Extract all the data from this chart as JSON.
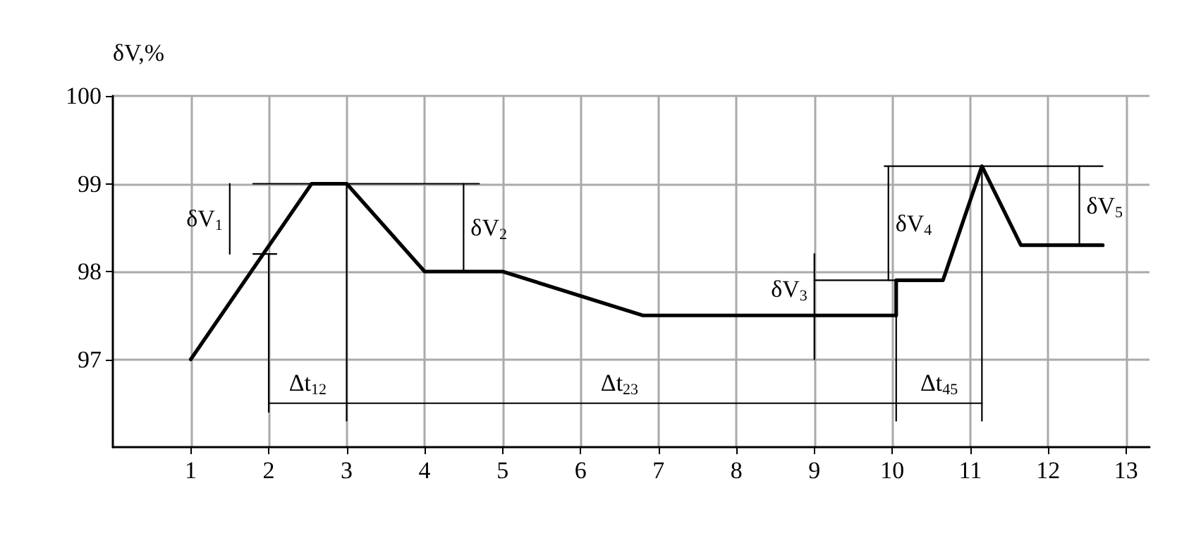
{
  "chart_data": {
    "type": "line",
    "ylabel": "δV,%",
    "xlim": [
      0,
      13.3
    ],
    "ylim": [
      96,
      100
    ],
    "xticks": [
      1,
      2,
      3,
      4,
      5,
      6,
      7,
      8,
      9,
      10,
      11,
      12,
      13
    ],
    "yticks": [
      97,
      98,
      99,
      100
    ],
    "grid": true,
    "marker": "none",
    "line_style": "solid",
    "series": [
      {
        "color": "#000000",
        "x": [
          1,
          2.55,
          3,
          4,
          5,
          6.8,
          10.05,
          10.05,
          10.65,
          11.15,
          11.65,
          12.7
        ],
        "values": [
          97,
          99,
          99,
          98,
          98,
          97.5,
          97.5,
          97.9,
          97.9,
          99.2,
          98.3,
          98.3
        ]
      },
      {
        "color": "#000000",
        "x": [
          1.8,
          4.7
        ],
        "values": [
          99,
          99
        ]
      },
      {
        "color": "#000000",
        "x": [
          1.8,
          2.1
        ],
        "values": [
          98.2,
          98.2
        ]
      },
      {
        "color": "#000000",
        "x": [
          1.5,
          1.5
        ],
        "values": [
          99,
          98.2
        ]
      },
      {
        "color": "#000000",
        "x": [
          4.5,
          4.5
        ],
        "values": [
          99,
          98
        ]
      },
      {
        "color": "#000000",
        "x": [
          2,
          2
        ],
        "values": [
          98.2,
          96.4
        ]
      },
      {
        "color": "#000000",
        "x": [
          3,
          3
        ],
        "values": [
          99,
          96.3
        ]
      },
      {
        "color": "#000000",
        "x": [
          2,
          11.15
        ],
        "values": [
          96.5,
          96.5
        ]
      },
      {
        "color": "#000000",
        "x": [
          10.05,
          10.05
        ],
        "values": [
          97.5,
          96.3
        ]
      },
      {
        "color": "#000000",
        "x": [
          11.15,
          11.15
        ],
        "values": [
          99.2,
          96.3
        ]
      },
      {
        "color": "#000000",
        "x": [
          9.9,
          12.7
        ],
        "values": [
          99.2,
          99.2
        ]
      },
      {
        "color": "#000000",
        "x": [
          9,
          10.05
        ],
        "values": [
          97.9,
          97.9
        ]
      },
      {
        "color": "#000000",
        "x": [
          9,
          9
        ],
        "values": [
          98.2,
          97
        ]
      },
      {
        "color": "#000000",
        "x": [
          9.95,
          9.95
        ],
        "values": [
          99.2,
          97.9
        ]
      },
      {
        "color": "#000000",
        "x": [
          12.4,
          12.4
        ],
        "values": [
          99.2,
          98.3
        ]
      }
    ],
    "annotations": [
      {
        "text": "δV$_{1}$",
        "x": 1.5,
        "y": 98.6
      },
      {
        "text": "δV$_{2}$",
        "x": 4.5,
        "y": 98.5
      },
      {
        "text": "δV$_{3}$",
        "x": 9,
        "y": 97.8
      },
      {
        "text": "δV$_{4}$",
        "x": 9.95,
        "y": 98.55
      },
      {
        "text": "δV$_{5}$",
        "x": 12.4,
        "y": 98.75
      },
      {
        "text": "Δt$_{12}$",
        "x": 2.5,
        "y": 96.5
      },
      {
        "text": "Δt$_{23}$",
        "x": 6.5,
        "y": 96.5
      },
      {
        "text": "Δt$_{45}$",
        "x": 10.6,
        "y": 96.5
      }
    ]
  }
}
